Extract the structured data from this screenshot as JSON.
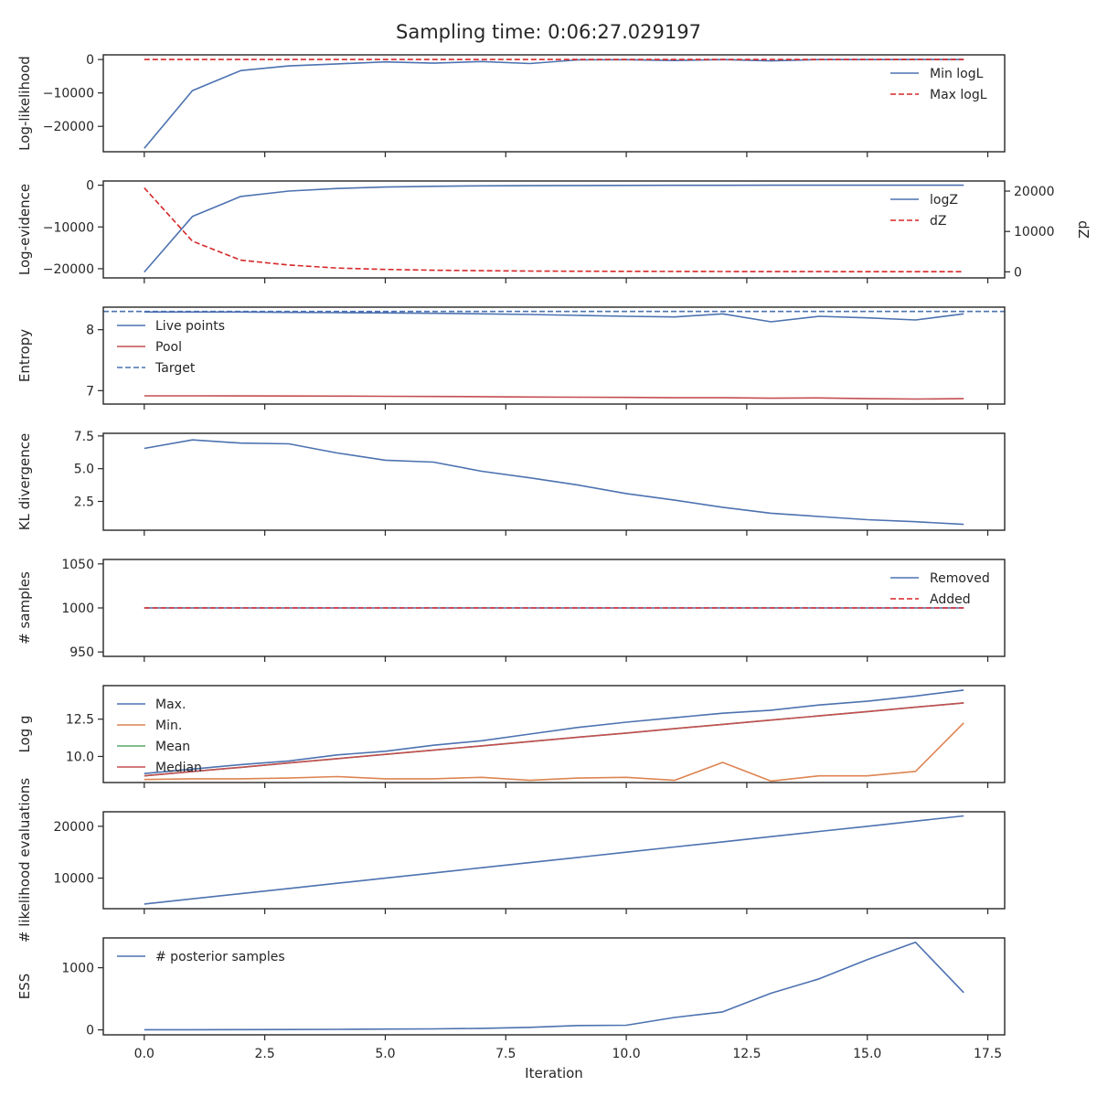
{
  "title": "Sampling time: 0:06:27.029197",
  "colors": {
    "blue": "#4c72b0",
    "red": "#c44e52",
    "red_dashed": "#d62728",
    "orange": "#dd8452",
    "green": "#55a868",
    "spine": "#262626"
  },
  "chart_data": [
    {
      "type": "line",
      "ylabel": "Log-likelihood",
      "xlim": [
        -0.85,
        17.85
      ],
      "ylim": [
        -27600,
        1400
      ],
      "yticks": [
        0,
        -10000,
        -20000
      ],
      "yticklabels": [
        "0",
        "−10000",
        "−20000"
      ],
      "legend": {
        "position": "top-right",
        "entries": [
          "Min logL",
          "Max logL"
        ]
      },
      "series": [
        {
          "name": "Min logL",
          "color": "blue",
          "dashed": false,
          "x": [
            0,
            1,
            2,
            3,
            4,
            5,
            6,
            7,
            8,
            9,
            10,
            11,
            12,
            13,
            14,
            15,
            16,
            17
          ],
          "y": [
            -26600,
            -9300,
            -3300,
            -1900,
            -1300,
            -700,
            -1100,
            -600,
            -1200,
            -100,
            -50,
            -300,
            -20,
            -400,
            -20,
            -10,
            -5,
            -2
          ]
        },
        {
          "name": "Max logL",
          "color": "red_dashed",
          "dashed": true,
          "x": [
            0,
            1,
            2,
            3,
            4,
            5,
            6,
            7,
            8,
            9,
            10,
            11,
            12,
            13,
            14,
            15,
            16,
            17
          ],
          "y": [
            0,
            0,
            0,
            0,
            0,
            0,
            0,
            0,
            0,
            0,
            0,
            0,
            0,
            0,
            0,
            0,
            0,
            0
          ]
        }
      ]
    },
    {
      "type": "line",
      "ylabel": "Log-evidence",
      "y2label": "dZ",
      "xlim": [
        -0.85,
        17.85
      ],
      "ylim": [
        -22200,
        1000
      ],
      "y2lim": [
        -1500,
        22500
      ],
      "yticks": [
        0,
        -10000,
        -20000
      ],
      "yticklabels": [
        "0",
        "−10000",
        "−20000"
      ],
      "y2ticks": [
        20000,
        10000,
        0
      ],
      "y2ticklabels": [
        "20000",
        "10000",
        "0"
      ],
      "legend": {
        "position": "top-right",
        "entries": [
          "logZ",
          "dZ"
        ]
      },
      "series": [
        {
          "name": "logZ",
          "color": "blue",
          "dashed": false,
          "axis": "left",
          "x": [
            0,
            1,
            2,
            3,
            4,
            5,
            6,
            7,
            8,
            9,
            10,
            11,
            12,
            13,
            14,
            15,
            16,
            17
          ],
          "y": [
            -20800,
            -7500,
            -2700,
            -1400,
            -800,
            -450,
            -270,
            -170,
            -110,
            -70,
            -45,
            -30,
            -20,
            -13,
            -8,
            -5,
            -3,
            -2
          ]
        },
        {
          "name": "dZ",
          "color": "red_dashed",
          "dashed": true,
          "axis": "right",
          "x": [
            0,
            1,
            2,
            3,
            4,
            5,
            6,
            7,
            8,
            9,
            10,
            11,
            12,
            13,
            14,
            15,
            16,
            17
          ],
          "y": [
            20800,
            7600,
            2900,
            1700,
            950,
            600,
            400,
            300,
            200,
            150,
            120,
            100,
            80,
            70,
            60,
            50,
            40,
            30
          ]
        }
      ]
    },
    {
      "type": "line",
      "ylabel": "Entropy",
      "xlim": [
        -0.85,
        17.85
      ],
      "ylim": [
        6.78,
        8.37
      ],
      "yticks": [
        8,
        7
      ],
      "yticklabels": [
        "8",
        "7"
      ],
      "legend": {
        "position": "top-left",
        "entries": [
          "Live points",
          "Pool",
          "Target"
        ]
      },
      "hline": {
        "name": "Target",
        "color": "blue",
        "dashed": true,
        "y": 8.3
      },
      "series": [
        {
          "name": "Live points",
          "color": "blue",
          "dashed": false,
          "x": [
            0,
            1,
            2,
            3,
            4,
            5,
            6,
            7,
            8,
            9,
            10,
            11,
            12,
            13,
            14,
            15,
            16,
            17
          ],
          "y": [
            8.29,
            8.29,
            8.29,
            8.285,
            8.28,
            8.275,
            8.27,
            8.26,
            8.25,
            8.235,
            8.22,
            8.21,
            8.26,
            8.13,
            8.22,
            8.195,
            8.16,
            8.26
          ]
        },
        {
          "name": "Pool",
          "color": "red",
          "dashed": false,
          "x": [
            0,
            1,
            2,
            3,
            4,
            5,
            6,
            7,
            8,
            9,
            10,
            11,
            12,
            13,
            14,
            15,
            16,
            17
          ],
          "y": [
            6.915,
            6.915,
            6.913,
            6.912,
            6.91,
            6.907,
            6.904,
            6.902,
            6.896,
            6.892,
            6.89,
            6.884,
            6.884,
            6.876,
            6.88,
            6.868,
            6.862,
            6.868
          ]
        }
      ]
    },
    {
      "type": "line",
      "ylabel": "KL divergence",
      "xlim": [
        -0.85,
        17.85
      ],
      "ylim": [
        0.3,
        7.7
      ],
      "yticks": [
        7.5,
        5.0,
        2.5
      ],
      "yticklabels": [
        "7.5",
        "5.0",
        "2.5"
      ],
      "series": [
        {
          "color": "blue",
          "dashed": false,
          "x": [
            0,
            1,
            2,
            3,
            4,
            5,
            6,
            7,
            8,
            9,
            10,
            11,
            12,
            13,
            14,
            15,
            16,
            17
          ],
          "y": [
            6.55,
            7.2,
            6.95,
            6.9,
            6.2,
            5.65,
            5.5,
            4.8,
            4.3,
            3.75,
            3.1,
            2.6,
            2.05,
            1.6,
            1.35,
            1.1,
            0.95,
            0.75
          ]
        }
      ]
    },
    {
      "type": "line",
      "ylabel": "# samples",
      "xlim": [
        -0.85,
        17.85
      ],
      "ylim": [
        945,
        1055
      ],
      "yticks": [
        1050,
        1000,
        950
      ],
      "yticklabels": [
        "1050",
        "1000",
        "950"
      ],
      "legend": {
        "position": "top-right",
        "entries": [
          "Removed",
          "Added"
        ]
      },
      "series": [
        {
          "name": "Removed",
          "color": "blue",
          "dashed": false,
          "x": [
            0,
            17
          ],
          "y": [
            1000,
            1000
          ]
        },
        {
          "name": "Added",
          "color": "red_dashed",
          "dashed": true,
          "x": [
            0,
            17
          ],
          "y": [
            1000,
            1000
          ]
        }
      ]
    },
    {
      "type": "line",
      "ylabel": "Log g",
      "xlim": [
        -0.85,
        17.85
      ],
      "ylim": [
        8.25,
        14.75
      ],
      "yticks": [
        12.5,
        10.0
      ],
      "yticklabels": [
        "12.5",
        "10.0"
      ],
      "legend": {
        "position": "top-left",
        "entries": [
          "Max.",
          "Min.",
          "Mean",
          "Median"
        ]
      },
      "series": [
        {
          "name": "Max.",
          "color": "blue",
          "dashed": false,
          "x": [
            0,
            1,
            2,
            3,
            4,
            5,
            6,
            7,
            8,
            9,
            10,
            11,
            12,
            13,
            14,
            15,
            16,
            17
          ],
          "y": [
            8.85,
            9.15,
            9.45,
            9.7,
            10.1,
            10.35,
            10.75,
            11.05,
            11.5,
            11.95,
            12.3,
            12.6,
            12.9,
            13.1,
            13.45,
            13.7,
            14.05,
            14.45
          ]
        },
        {
          "name": "Min.",
          "color": "orange",
          "dashed": false,
          "x": [
            0,
            1,
            2,
            3,
            4,
            5,
            6,
            7,
            8,
            9,
            10,
            11,
            12,
            13,
            14,
            15,
            16,
            17
          ],
          "y": [
            8.45,
            8.5,
            8.5,
            8.55,
            8.65,
            8.5,
            8.5,
            8.6,
            8.4,
            8.55,
            8.6,
            8.4,
            9.6,
            8.35,
            8.7,
            8.7,
            9.0,
            12.25
          ]
        },
        {
          "name": "Mean",
          "color": "green",
          "dashed": false,
          "x": [
            0,
            1,
            2,
            3,
            4,
            5,
            6,
            7,
            8,
            9,
            10,
            11,
            12,
            13,
            14,
            15,
            16,
            17
          ],
          "y": [
            8.7,
            8.99,
            9.27,
            9.56,
            9.85,
            10.14,
            10.42,
            10.71,
            11.0,
            11.29,
            11.57,
            11.86,
            12.15,
            12.44,
            12.72,
            13.01,
            13.3,
            13.59
          ]
        },
        {
          "name": "Median",
          "color": "red",
          "dashed": false,
          "x": [
            0,
            1,
            2,
            3,
            4,
            5,
            6,
            7,
            8,
            9,
            10,
            11,
            12,
            13,
            14,
            15,
            16,
            17
          ],
          "y": [
            8.7,
            8.99,
            9.27,
            9.56,
            9.85,
            10.14,
            10.42,
            10.71,
            11.0,
            11.29,
            11.57,
            11.86,
            12.15,
            12.44,
            12.72,
            13.01,
            13.3,
            13.59
          ]
        }
      ]
    },
    {
      "type": "line",
      "ylabel": "# likelihood evaluations",
      "xlim": [
        -0.85,
        17.85
      ],
      "ylim": [
        4100,
        22800
      ],
      "yticks": [
        20000,
        10000
      ],
      "yticklabels": [
        "20000",
        "10000"
      ],
      "series": [
        {
          "color": "blue",
          "dashed": false,
          "x": [
            0,
            1,
            2,
            3,
            4,
            5,
            6,
            7,
            8,
            9,
            10,
            11,
            12,
            13,
            14,
            15,
            16,
            17
          ],
          "y": [
            5000,
            6000,
            7000,
            8000,
            9000,
            10000,
            11000,
            12000,
            13000,
            14000,
            15000,
            16000,
            17000,
            18000,
            19000,
            20000,
            21000,
            22000
          ]
        }
      ]
    },
    {
      "type": "line",
      "ylabel": "ESS",
      "xlabel": "Iteration",
      "xlim": [
        -0.85,
        17.85
      ],
      "ylim": [
        -80,
        1480
      ],
      "yticks": [
        1000,
        0
      ],
      "yticklabels": [
        "1000",
        "0"
      ],
      "legend": {
        "position": "top-left",
        "entries": [
          "# posterior samples"
        ]
      },
      "series": [
        {
          "name": "# posterior samples",
          "color": "blue",
          "dashed": false,
          "x": [
            0,
            1,
            2,
            3,
            4,
            5,
            6,
            7,
            8,
            9,
            10,
            11,
            12,
            13,
            14,
            15,
            16,
            17
          ],
          "y": [
            2,
            3,
            4,
            5,
            8,
            12,
            15,
            25,
            40,
            70,
            75,
            200,
            290,
            590,
            820,
            1130,
            1410,
            600
          ]
        }
      ]
    }
  ],
  "xaxis": {
    "ticks": [
      0,
      2.5,
      5,
      7.5,
      10,
      12.5,
      15,
      17.5
    ],
    "ticklabels": [
      "0.0",
      "2.5",
      "5.0",
      "7.5",
      "10.0",
      "12.5",
      "15.0",
      "17.5"
    ]
  }
}
